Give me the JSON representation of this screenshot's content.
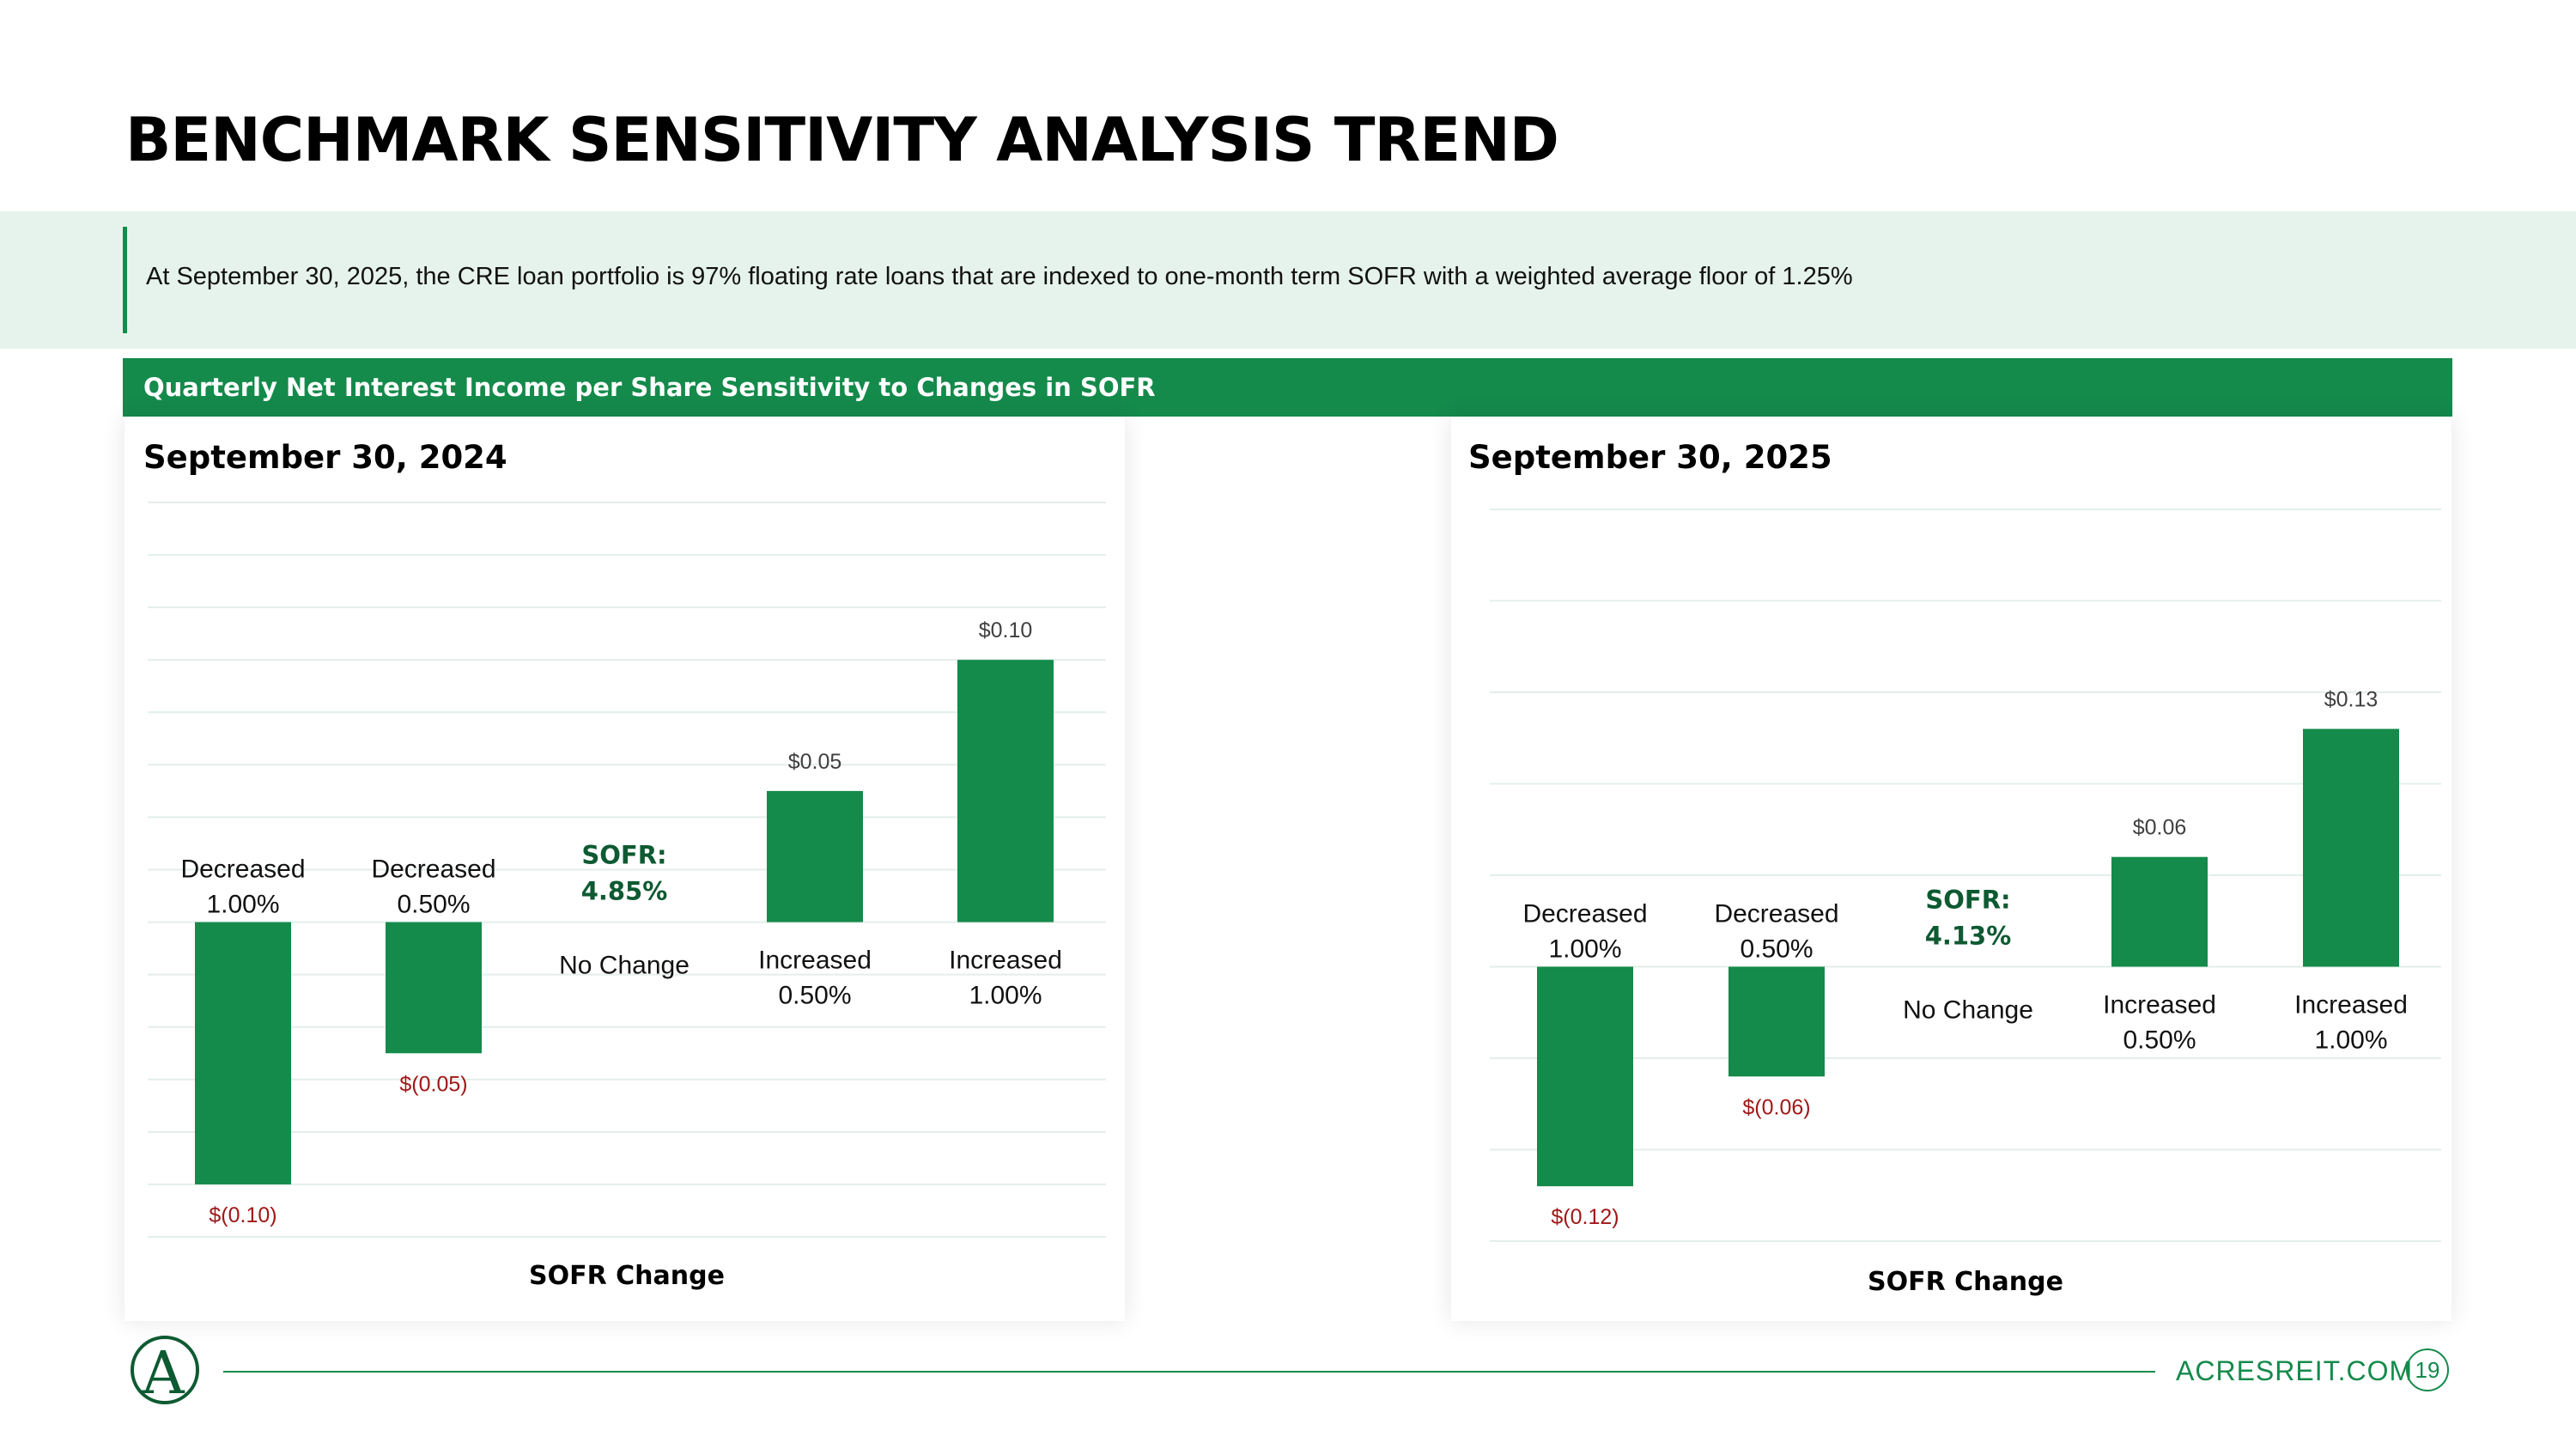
{
  "page": {
    "title": "BENCHMARK SENSITIVITY ANALYSIS TREND",
    "banner_text": "At September 30, 2025, the CRE loan portfolio is 97% floating rate loans that are indexed to one-month term SOFR with a weighted average floor of 1.25%",
    "section_header": "Quarterly Net Interest Income per Share Sensitivity to Changes in SOFR",
    "footer": {
      "website": "ACRESREIT.COM",
      "page_number": "19",
      "logo_letter": "A"
    }
  },
  "colors": {
    "brand_green": "#148a4b",
    "banner_bg": "#e6f3ec",
    "negative_label": "#a01818",
    "positive_label": "#404040",
    "gridline": "#e3efe9",
    "sofr_label": "#0e5a32"
  },
  "chart_data": [
    {
      "type": "bar",
      "title": "September 30, 2024",
      "xlabel": "SOFR Change",
      "ylabel": "",
      "ylim": [
        -0.12,
        0.16
      ],
      "grid_step": 0.02,
      "grid": true,
      "categories": [
        [
          "Decreased",
          "1.00%"
        ],
        [
          "Decreased",
          "0.50%"
        ],
        [
          "No Change"
        ],
        [
          "Increased",
          "0.50%"
        ],
        [
          "Increased",
          "1.00%"
        ]
      ],
      "values": [
        -0.1,
        -0.05,
        0,
        0.05,
        0.1
      ],
      "value_labels": [
        "$(0.10)",
        "$(0.05)",
        "",
        "$0.05",
        "$0.10"
      ],
      "sofr_label": [
        "SOFR:",
        "4.85%"
      ]
    },
    {
      "type": "bar",
      "title": "September 30, 2025",
      "xlabel": "SOFR Change",
      "ylabel": "",
      "ylim": [
        -0.15,
        0.25
      ],
      "grid_step": 0.05,
      "grid": true,
      "categories": [
        [
          "Decreased",
          "1.00%"
        ],
        [
          "Decreased",
          "0.50%"
        ],
        [
          "No Change"
        ],
        [
          "Increased",
          "0.50%"
        ],
        [
          "Increased",
          "1.00%"
        ]
      ],
      "values": [
        -0.12,
        -0.06,
        0,
        0.06,
        0.13
      ],
      "value_labels": [
        "$(0.12)",
        "$(0.06)",
        "",
        "$0.06",
        "$0.13"
      ],
      "sofr_label": [
        "SOFR:",
        "4.13%"
      ]
    }
  ]
}
